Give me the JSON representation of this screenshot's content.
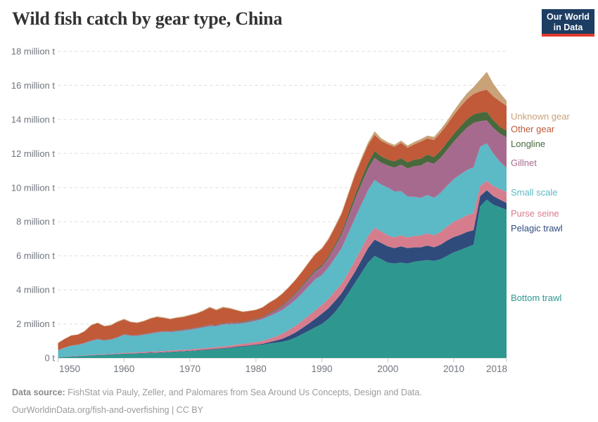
{
  "header": {
    "logo": {
      "line1": "Our World",
      "line2": "in Data",
      "bg_color": "#1D3D63",
      "bar_color": "#E23A2C"
    }
  },
  "footer": {
    "source_label": "Data source:",
    "source_text": " FishStat via Pauly, Zeller, and Palomares from Sea Around Us Concepts, Design and Data.",
    "link_line": "OurWorldinData.org/fish-and-overfishing | CC BY"
  },
  "chart_data": {
    "type": "area",
    "stacked": true,
    "title": "Wild fish catch by gear type, China",
    "xlabel": "",
    "ylabel": "",
    "unit": "million t",
    "ylim": [
      0,
      18
    ],
    "x_range": [
      1950,
      2018
    ],
    "grid": "horizontal-dashed",
    "legend_position": "right",
    "background": "#ffffff",
    "x": [
      1950,
      1951,
      1952,
      1953,
      1954,
      1955,
      1956,
      1957,
      1958,
      1959,
      1960,
      1961,
      1962,
      1963,
      1964,
      1965,
      1966,
      1967,
      1968,
      1969,
      1970,
      1971,
      1972,
      1973,
      1974,
      1975,
      1976,
      1977,
      1978,
      1979,
      1980,
      1981,
      1982,
      1983,
      1984,
      1985,
      1986,
      1987,
      1988,
      1989,
      1990,
      1991,
      1992,
      1993,
      1994,
      1995,
      1996,
      1997,
      1998,
      1999,
      2000,
      2001,
      2002,
      2003,
      2004,
      2005,
      2006,
      2007,
      2008,
      2009,
      2010,
      2011,
      2012,
      2013,
      2014,
      2015,
      2016,
      2017,
      2018
    ],
    "x_ticks": [
      {
        "value": 1950,
        "label": "1950"
      },
      {
        "value": 1960,
        "label": "1960"
      },
      {
        "value": 1970,
        "label": "1970"
      },
      {
        "value": 1980,
        "label": "1980"
      },
      {
        "value": 1990,
        "label": "1990"
      },
      {
        "value": 2000,
        "label": "2000"
      },
      {
        "value": 2010,
        "label": "2010"
      },
      {
        "value": 2018,
        "label": "2018"
      }
    ],
    "y_ticks": [
      {
        "value": 0,
        "label": "0 t"
      },
      {
        "value": 2,
        "label": "2 million t"
      },
      {
        "value": 4,
        "label": "4 million t"
      },
      {
        "value": 6,
        "label": "6 million t"
      },
      {
        "value": 8,
        "label": "8 million t"
      },
      {
        "value": 10,
        "label": "10 million t"
      },
      {
        "value": 12,
        "label": "12 million t"
      },
      {
        "value": 14,
        "label": "14 million t"
      },
      {
        "value": 16,
        "label": "16 million t"
      },
      {
        "value": 18,
        "label": "18 million t"
      }
    ],
    "series": [
      {
        "id": "bottom-trawl",
        "name": "Bottom trawl",
        "color": "#2E9890",
        "values": [
          0.05,
          0.07,
          0.09,
          0.11,
          0.13,
          0.15,
          0.17,
          0.18,
          0.2,
          0.22,
          0.25,
          0.26,
          0.27,
          0.28,
          0.29,
          0.3,
          0.32,
          0.34,
          0.36,
          0.38,
          0.4,
          0.43,
          0.45,
          0.48,
          0.51,
          0.55,
          0.58,
          0.62,
          0.66,
          0.7,
          0.75,
          0.78,
          0.85,
          0.9,
          0.95,
          1.05,
          1.2,
          1.4,
          1.6,
          1.8,
          2.0,
          2.3,
          2.7,
          3.2,
          3.8,
          4.4,
          5.0,
          5.6,
          6.0,
          5.8,
          5.6,
          5.55,
          5.6,
          5.55,
          5.65,
          5.7,
          5.75,
          5.7,
          5.8,
          6.0,
          6.2,
          6.35,
          6.5,
          6.65,
          8.9,
          9.3,
          9.0,
          8.85,
          8.7
        ]
      },
      {
        "id": "pelagic-trawl",
        "name": "Pelagic trawl",
        "color": "#2F4B7C",
        "values": [
          0.0,
          0.0,
          0.01,
          0.01,
          0.01,
          0.01,
          0.01,
          0.01,
          0.01,
          0.01,
          0.01,
          0.01,
          0.01,
          0.02,
          0.02,
          0.02,
          0.02,
          0.02,
          0.02,
          0.02,
          0.02,
          0.02,
          0.03,
          0.03,
          0.03,
          0.03,
          0.03,
          0.04,
          0.04,
          0.04,
          0.04,
          0.05,
          0.08,
          0.12,
          0.18,
          0.25,
          0.3,
          0.35,
          0.42,
          0.5,
          0.6,
          0.62,
          0.65,
          0.6,
          0.62,
          0.65,
          0.75,
          0.85,
          0.95,
          0.95,
          0.95,
          0.9,
          0.95,
          0.9,
          0.85,
          0.8,
          0.85,
          0.8,
          0.85,
          0.9,
          0.9,
          0.88,
          0.9,
          0.85,
          0.6,
          0.55,
          0.5,
          0.45,
          0.4
        ]
      },
      {
        "id": "purse-seine",
        "name": "Purse seine",
        "color": "#D67D8D",
        "values": [
          0.01,
          0.01,
          0.02,
          0.02,
          0.02,
          0.03,
          0.03,
          0.03,
          0.04,
          0.04,
          0.05,
          0.05,
          0.05,
          0.06,
          0.06,
          0.07,
          0.07,
          0.07,
          0.08,
          0.08,
          0.08,
          0.09,
          0.09,
          0.1,
          0.1,
          0.1,
          0.11,
          0.12,
          0.13,
          0.14,
          0.15,
          0.17,
          0.2,
          0.24,
          0.29,
          0.35,
          0.39,
          0.43,
          0.47,
          0.5,
          0.52,
          0.55,
          0.58,
          0.55,
          0.6,
          0.65,
          0.68,
          0.7,
          0.7,
          0.68,
          0.65,
          0.63,
          0.65,
          0.63,
          0.66,
          0.7,
          0.72,
          0.7,
          0.75,
          0.82,
          0.9,
          0.95,
          0.98,
          1.0,
          0.6,
          0.55,
          0.6,
          0.62,
          0.65
        ]
      },
      {
        "id": "small-scale",
        "name": "Small scale",
        "color": "#5CB9C6",
        "values": [
          0.38,
          0.52,
          0.6,
          0.62,
          0.7,
          0.8,
          0.88,
          0.8,
          0.82,
          0.92,
          1.05,
          0.98,
          0.96,
          1.0,
          1.05,
          1.1,
          1.12,
          1.08,
          1.1,
          1.12,
          1.15,
          1.18,
          1.22,
          1.26,
          1.22,
          1.28,
          1.26,
          1.22,
          1.2,
          1.22,
          1.25,
          1.28,
          1.32,
          1.36,
          1.4,
          1.45,
          1.52,
          1.62,
          1.72,
          1.82,
          1.75,
          1.85,
          1.95,
          2.1,
          2.3,
          2.5,
          2.6,
          2.7,
          2.8,
          2.75,
          2.8,
          2.7,
          2.6,
          2.4,
          2.3,
          2.2,
          2.25,
          2.2,
          2.3,
          2.4,
          2.5,
          2.6,
          2.65,
          2.7,
          2.3,
          2.2,
          1.9,
          1.6,
          1.4
        ]
      },
      {
        "id": "gillnet",
        "name": "Gillnet",
        "color": "#A76A8F",
        "values": [
          0.02,
          0.02,
          0.02,
          0.02,
          0.03,
          0.03,
          0.03,
          0.03,
          0.03,
          0.03,
          0.03,
          0.03,
          0.04,
          0.04,
          0.04,
          0.04,
          0.04,
          0.05,
          0.05,
          0.05,
          0.05,
          0.05,
          0.06,
          0.06,
          0.06,
          0.06,
          0.07,
          0.07,
          0.07,
          0.08,
          0.08,
          0.1,
          0.14,
          0.18,
          0.24,
          0.3,
          0.35,
          0.4,
          0.45,
          0.48,
          0.5,
          0.58,
          0.68,
          0.8,
          0.95,
          1.1,
          1.2,
          1.25,
          1.3,
          1.28,
          1.3,
          1.4,
          1.55,
          1.65,
          1.8,
          1.9,
          1.95,
          2.0,
          2.05,
          2.1,
          2.2,
          2.35,
          2.5,
          2.6,
          1.5,
          1.35,
          1.5,
          1.65,
          1.8
        ]
      },
      {
        "id": "longline",
        "name": "Longline",
        "color": "#48693C",
        "values": [
          0.0,
          0.0,
          0.0,
          0.01,
          0.01,
          0.01,
          0.01,
          0.01,
          0.01,
          0.01,
          0.01,
          0.01,
          0.01,
          0.01,
          0.01,
          0.01,
          0.01,
          0.02,
          0.02,
          0.02,
          0.02,
          0.02,
          0.02,
          0.02,
          0.02,
          0.02,
          0.02,
          0.02,
          0.03,
          0.03,
          0.03,
          0.03,
          0.04,
          0.04,
          0.05,
          0.05,
          0.06,
          0.06,
          0.07,
          0.08,
          0.08,
          0.1,
          0.12,
          0.15,
          0.2,
          0.25,
          0.3,
          0.35,
          0.4,
          0.38,
          0.35,
          0.36,
          0.38,
          0.36,
          0.38,
          0.4,
          0.42,
          0.4,
          0.42,
          0.44,
          0.45,
          0.47,
          0.48,
          0.5,
          0.5,
          0.5,
          0.45,
          0.4,
          0.4
        ]
      },
      {
        "id": "other-gear",
        "name": "Other gear",
        "color": "#C05A39",
        "values": [
          0.42,
          0.5,
          0.58,
          0.58,
          0.66,
          0.88,
          0.92,
          0.8,
          0.8,
          0.88,
          0.85,
          0.76,
          0.71,
          0.74,
          0.83,
          0.86,
          0.77,
          0.69,
          0.72,
          0.73,
          0.78,
          0.81,
          0.88,
          1.0,
          0.86,
          0.91,
          0.83,
          0.71,
          0.57,
          0.54,
          0.52,
          0.55,
          0.6,
          0.62,
          0.65,
          0.7,
          0.75,
          0.8,
          0.85,
          0.9,
          0.95,
          0.95,
          1.0,
          1.05,
          1.1,
          1.15,
          1.1,
          1.05,
          0.95,
          0.9,
          0.9,
          0.85,
          0.9,
          0.85,
          0.9,
          1.0,
          0.95,
          1.0,
          1.05,
          1.05,
          1.1,
          1.15,
          1.18,
          1.2,
          1.25,
          1.3,
          1.4,
          1.5,
          1.45
        ]
      },
      {
        "id": "unknown-gear",
        "name": "Unknown gear",
        "color": "#C9A277",
        "values": [
          0.01,
          0.01,
          0.01,
          0.01,
          0.02,
          0.03,
          0.03,
          0.03,
          0.03,
          0.04,
          0.05,
          0.04,
          0.04,
          0.04,
          0.04,
          0.04,
          0.04,
          0.04,
          0.04,
          0.04,
          0.04,
          0.04,
          0.05,
          0.05,
          0.05,
          0.05,
          0.04,
          0.04,
          0.03,
          0.03,
          0.02,
          0.02,
          0.03,
          0.03,
          0.04,
          0.03,
          0.04,
          0.04,
          0.05,
          0.05,
          0.06,
          0.07,
          0.08,
          0.09,
          0.1,
          0.1,
          0.12,
          0.15,
          0.2,
          0.15,
          0.12,
          0.12,
          0.13,
          0.13,
          0.14,
          0.15,
          0.16,
          0.18,
          0.2,
          0.22,
          0.25,
          0.3,
          0.35,
          0.4,
          0.7,
          1.05,
          0.75,
          0.5,
          0.3
        ]
      }
    ]
  }
}
